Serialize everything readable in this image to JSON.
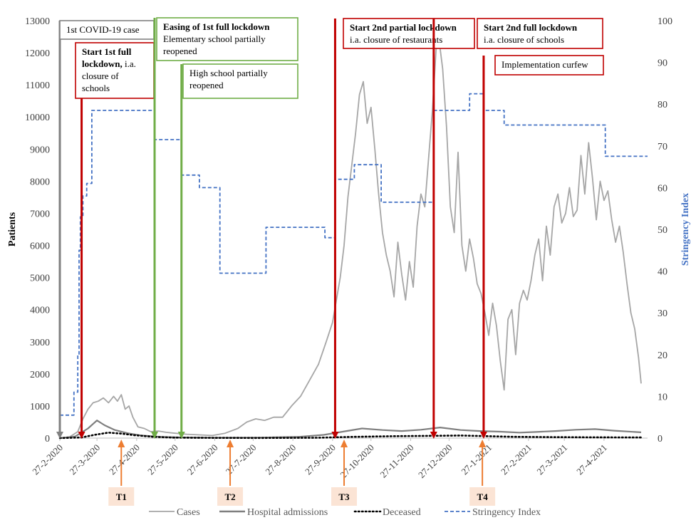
{
  "chart_data": {
    "type": "line",
    "ylabel": "Patients",
    "y2label": "Stringency Index",
    "ylim": [
      0,
      13000
    ],
    "y2lim": [
      0,
      100
    ],
    "yticks": [
      "0",
      "1000",
      "2000",
      "3000",
      "4000",
      "5000",
      "6000",
      "7000",
      "8000",
      "9000",
      "10000",
      "11000",
      "12000",
      "13000"
    ],
    "y2ticks": [
      "0",
      "10",
      "20",
      "30",
      "40",
      "50",
      "60",
      "70",
      "80",
      "90",
      "100"
    ],
    "xticks": [
      "27-2-2020",
      "27-3-2020",
      "27-4-2020",
      "27-5-2020",
      "27-6-2020",
      "27-7-2020",
      "27-8-2020",
      "27-9-2020",
      "27-10-2020",
      "27-11-2020",
      "27-12-2020",
      "27-1-2021",
      "27-2-2021",
      "27-3-2021",
      "27-4-2021"
    ],
    "xlim": [
      "2020-02-27",
      "2021-05-31"
    ],
    "legend": {
      "placement": "bottom",
      "items": [
        {
          "label": "Cases",
          "color": "#a6a6a6",
          "style": "solid"
        },
        {
          "label": "Hospital admissions",
          "color": "#7f7f7f",
          "style": "solid-thick"
        },
        {
          "label": "Deceased",
          "color": "#000000",
          "style": "dotted"
        },
        {
          "label": "Stringency Index",
          "color": "#4472c4",
          "style": "dashed"
        }
      ]
    },
    "series": [
      {
        "name": "Cases",
        "axis": "left",
        "color": "#a6a6a6",
        "points": [
          [
            "2020-02-27",
            0
          ],
          [
            "2020-03-05",
            20
          ],
          [
            "2020-03-12",
            200
          ],
          [
            "2020-03-16",
            600
          ],
          [
            "2020-03-20",
            900
          ],
          [
            "2020-03-24",
            1100
          ],
          [
            "2020-03-28",
            1150
          ],
          [
            "2020-04-01",
            1250
          ],
          [
            "2020-04-05",
            1100
          ],
          [
            "2020-04-09",
            1300
          ],
          [
            "2020-04-12",
            1150
          ],
          [
            "2020-04-15",
            1350
          ],
          [
            "2020-04-18",
            900
          ],
          [
            "2020-04-21",
            1000
          ],
          [
            "2020-04-24",
            650
          ],
          [
            "2020-04-28",
            350
          ],
          [
            "2020-05-03",
            300
          ],
          [
            "2020-05-08",
            200
          ],
          [
            "2020-05-14",
            220
          ],
          [
            "2020-05-20",
            180
          ],
          [
            "2020-05-27",
            150
          ],
          [
            "2020-06-05",
            120
          ],
          [
            "2020-06-15",
            100
          ],
          [
            "2020-06-25",
            80
          ],
          [
            "2020-07-05",
            150
          ],
          [
            "2020-07-15",
            300
          ],
          [
            "2020-07-22",
            500
          ],
          [
            "2020-07-29",
            600
          ],
          [
            "2020-08-05",
            550
          ],
          [
            "2020-08-12",
            650
          ],
          [
            "2020-08-19",
            650
          ],
          [
            "2020-08-26",
            1000
          ],
          [
            "2020-09-02",
            1300
          ],
          [
            "2020-09-09",
            1800
          ],
          [
            "2020-09-16",
            2300
          ],
          [
            "2020-09-22",
            3000
          ],
          [
            "2020-09-27",
            3600
          ],
          [
            "2020-09-30",
            4300
          ],
          [
            "2020-10-03",
            5000
          ],
          [
            "2020-10-06",
            6000
          ],
          [
            "2020-10-09",
            7500
          ],
          [
            "2020-10-12",
            8500
          ],
          [
            "2020-10-15",
            9500
          ],
          [
            "2020-10-18",
            10700
          ],
          [
            "2020-10-21",
            11100
          ],
          [
            "2020-10-24",
            9800
          ],
          [
            "2020-10-27",
            10300
          ],
          [
            "2020-10-30",
            9000
          ],
          [
            "2020-11-02",
            7600
          ],
          [
            "2020-11-05",
            6400
          ],
          [
            "2020-11-08",
            5700
          ],
          [
            "2020-11-11",
            5200
          ],
          [
            "2020-11-14",
            4400
          ],
          [
            "2020-11-17",
            6100
          ],
          [
            "2020-11-20",
            5100
          ],
          [
            "2020-11-23",
            4300
          ],
          [
            "2020-11-26",
            5500
          ],
          [
            "2020-11-29",
            4700
          ],
          [
            "2020-12-02",
            6600
          ],
          [
            "2020-12-05",
            7600
          ],
          [
            "2020-12-08",
            7200
          ],
          [
            "2020-12-11",
            8700
          ],
          [
            "2020-12-14",
            10200
          ],
          [
            "2020-12-17",
            12200
          ],
          [
            "2020-12-19",
            12450
          ],
          [
            "2020-12-22",
            11500
          ],
          [
            "2020-12-25",
            9700
          ],
          [
            "2020-12-28",
            7200
          ],
          [
            "2020-12-31",
            6400
          ],
          [
            "2021-01-03",
            8900
          ],
          [
            "2021-01-06",
            6000
          ],
          [
            "2021-01-09",
            5200
          ],
          [
            "2021-01-12",
            6200
          ],
          [
            "2021-01-15",
            5600
          ],
          [
            "2021-01-18",
            4800
          ],
          [
            "2021-01-21",
            4500
          ],
          [
            "2021-01-24",
            3900
          ],
          [
            "2021-01-27",
            3200
          ],
          [
            "2021-01-30",
            4200
          ],
          [
            "2021-02-02",
            3500
          ],
          [
            "2021-02-05",
            2400
          ],
          [
            "2021-02-08",
            1500
          ],
          [
            "2021-02-11",
            3700
          ],
          [
            "2021-02-14",
            4000
          ],
          [
            "2021-02-17",
            2600
          ],
          [
            "2021-02-20",
            4200
          ],
          [
            "2021-02-23",
            4600
          ],
          [
            "2021-02-26",
            4300
          ],
          [
            "2021-03-01",
            4900
          ],
          [
            "2021-03-04",
            5700
          ],
          [
            "2021-03-07",
            6200
          ],
          [
            "2021-03-10",
            4900
          ],
          [
            "2021-03-13",
            6600
          ],
          [
            "2021-03-16",
            5700
          ],
          [
            "2021-03-19",
            7200
          ],
          [
            "2021-03-22",
            7600
          ],
          [
            "2021-03-25",
            6700
          ],
          [
            "2021-03-28",
            7000
          ],
          [
            "2021-03-31",
            7800
          ],
          [
            "2021-04-03",
            6900
          ],
          [
            "2021-04-06",
            7100
          ],
          [
            "2021-04-09",
            8800
          ],
          [
            "2021-04-12",
            7600
          ],
          [
            "2021-04-15",
            9200
          ],
          [
            "2021-04-18",
            8100
          ],
          [
            "2021-04-21",
            6800
          ],
          [
            "2021-04-24",
            8000
          ],
          [
            "2021-04-27",
            7400
          ],
          [
            "2021-04-30",
            7700
          ],
          [
            "2021-05-03",
            6800
          ],
          [
            "2021-05-06",
            6100
          ],
          [
            "2021-05-09",
            6600
          ],
          [
            "2021-05-12",
            5800
          ],
          [
            "2021-05-15",
            4800
          ],
          [
            "2021-05-18",
            3900
          ],
          [
            "2021-05-21",
            3400
          ],
          [
            "2021-05-24",
            2500
          ],
          [
            "2021-05-26",
            1700
          ]
        ]
      },
      {
        "name": "Hospital admissions",
        "axis": "left",
        "color": "#7f7f7f",
        "points": [
          [
            "2020-02-27",
            0
          ],
          [
            "2020-03-10",
            50
          ],
          [
            "2020-03-20",
            300
          ],
          [
            "2020-03-27",
            550
          ],
          [
            "2020-04-02",
            400
          ],
          [
            "2020-04-10",
            250
          ],
          [
            "2020-04-20",
            150
          ],
          [
            "2020-05-01",
            80
          ],
          [
            "2020-05-15",
            40
          ],
          [
            "2020-06-01",
            20
          ],
          [
            "2020-07-01",
            10
          ],
          [
            "2020-08-01",
            15
          ],
          [
            "2020-09-01",
            40
          ],
          [
            "2020-09-20",
            100
          ],
          [
            "2020-10-05",
            200
          ],
          [
            "2020-10-20",
            300
          ],
          [
            "2020-11-05",
            250
          ],
          [
            "2020-11-20",
            220
          ],
          [
            "2020-12-05",
            260
          ],
          [
            "2020-12-20",
            330
          ],
          [
            "2021-01-05",
            250
          ],
          [
            "2021-01-20",
            220
          ],
          [
            "2021-02-05",
            200
          ],
          [
            "2021-02-20",
            170
          ],
          [
            "2021-03-05",
            190
          ],
          [
            "2021-03-20",
            220
          ],
          [
            "2021-04-05",
            260
          ],
          [
            "2021-04-20",
            280
          ],
          [
            "2021-05-05",
            230
          ],
          [
            "2021-05-26",
            180
          ]
        ]
      },
      {
        "name": "Deceased",
        "axis": "left",
        "color": "#000000",
        "points": [
          [
            "2020-02-27",
            0
          ],
          [
            "2020-03-15",
            20
          ],
          [
            "2020-03-25",
            100
          ],
          [
            "2020-04-05",
            170
          ],
          [
            "2020-04-15",
            140
          ],
          [
            "2020-04-25",
            90
          ],
          [
            "2020-05-10",
            40
          ],
          [
            "2020-05-25",
            15
          ],
          [
            "2020-06-15",
            8
          ],
          [
            "2020-08-01",
            5
          ],
          [
            "2020-09-15",
            10
          ],
          [
            "2020-10-15",
            40
          ],
          [
            "2020-11-15",
            60
          ],
          [
            "2020-12-15",
            70
          ],
          [
            "2021-01-05",
            80
          ],
          [
            "2021-01-25",
            60
          ],
          [
            "2021-02-15",
            40
          ],
          [
            "2021-03-15",
            30
          ],
          [
            "2021-04-15",
            25
          ],
          [
            "2021-05-26",
            20
          ]
        ]
      },
      {
        "name": "Stringency Index",
        "axis": "right",
        "color": "#4472c4",
        "step": true,
        "points": [
          [
            "2020-02-27",
            5.5
          ],
          [
            "2020-03-09",
            11
          ],
          [
            "2020-03-12",
            20
          ],
          [
            "2020-03-13",
            45
          ],
          [
            "2020-03-14",
            53
          ],
          [
            "2020-03-16",
            58
          ],
          [
            "2020-03-19",
            61
          ],
          [
            "2020-03-23",
            78.5
          ],
          [
            "2020-05-11",
            71.5
          ],
          [
            "2020-06-01",
            63
          ],
          [
            "2020-06-15",
            60
          ],
          [
            "2020-07-01",
            39.5
          ],
          [
            "2020-08-06",
            50.5
          ],
          [
            "2020-09-21",
            48
          ],
          [
            "2020-09-29",
            62
          ],
          [
            "2020-10-14",
            65.5
          ],
          [
            "2020-11-04",
            56.5
          ],
          [
            "2020-11-19",
            56.5
          ],
          [
            "2020-12-15",
            78.5
          ],
          [
            "2021-01-08",
            78.5
          ],
          [
            "2021-01-12",
            82.5
          ],
          [
            "2021-01-23",
            78.5
          ],
          [
            "2021-02-08",
            75
          ],
          [
            "2021-04-28",
            67.5
          ],
          [
            "2021-05-31",
            67.5
          ]
        ]
      }
    ],
    "interventions": [
      {
        "date": "2020-02-27",
        "color": "#808080",
        "text_lines": [
          [
            "1st COVID-19 case",
            false
          ]
        ],
        "box_color": "#808080"
      },
      {
        "date": "2020-03-15",
        "color": "#c00000",
        "text_lines": [
          [
            "Start 1st full",
            true
          ],
          [
            "lockdown, ",
            true,
            "i.a."
          ],
          [
            "closure of",
            false
          ],
          [
            "schools",
            false
          ]
        ],
        "box_color": "#c00000"
      },
      {
        "date": "2020-05-11",
        "color": "#70ad47",
        "text_lines": [
          [
            "Easing of 1st full  lockdown",
            true
          ],
          [
            "Elementary school partially",
            false
          ],
          [
            "reopened",
            false
          ]
        ],
        "box_color": "#70ad47"
      },
      {
        "date": "2020-06-01",
        "color": "#70ad47",
        "text_lines": [
          [
            "High school partially",
            false
          ],
          [
            "reopened",
            false
          ]
        ],
        "box_color": "#70ad47"
      },
      {
        "date": "2020-09-29",
        "color": "#c00000",
        "text_lines": [
          [
            "Start 2nd partial lockdown",
            true
          ],
          [
            "i.a. closure of restaurants",
            false
          ]
        ],
        "box_color": "#c00000"
      },
      {
        "date": "2020-12-15",
        "color": "#c00000",
        "text_lines": [
          [
            "Start 2nd full lockdown",
            true
          ],
          [
            "i.a. closure of schools",
            false
          ]
        ],
        "box_color": "#c00000"
      },
      {
        "date": "2021-01-23",
        "color": "#c00000",
        "text_lines": [
          [
            "Implementation curfew",
            false
          ]
        ],
        "box_color": "#c00000"
      }
    ],
    "timepoints": [
      {
        "label": "T1",
        "date": "2020-04-15"
      },
      {
        "label": "T2",
        "date": "2020-07-09"
      },
      {
        "label": "T3",
        "date": "2020-10-06"
      },
      {
        "label": "T4",
        "date": "2021-01-22"
      }
    ]
  }
}
